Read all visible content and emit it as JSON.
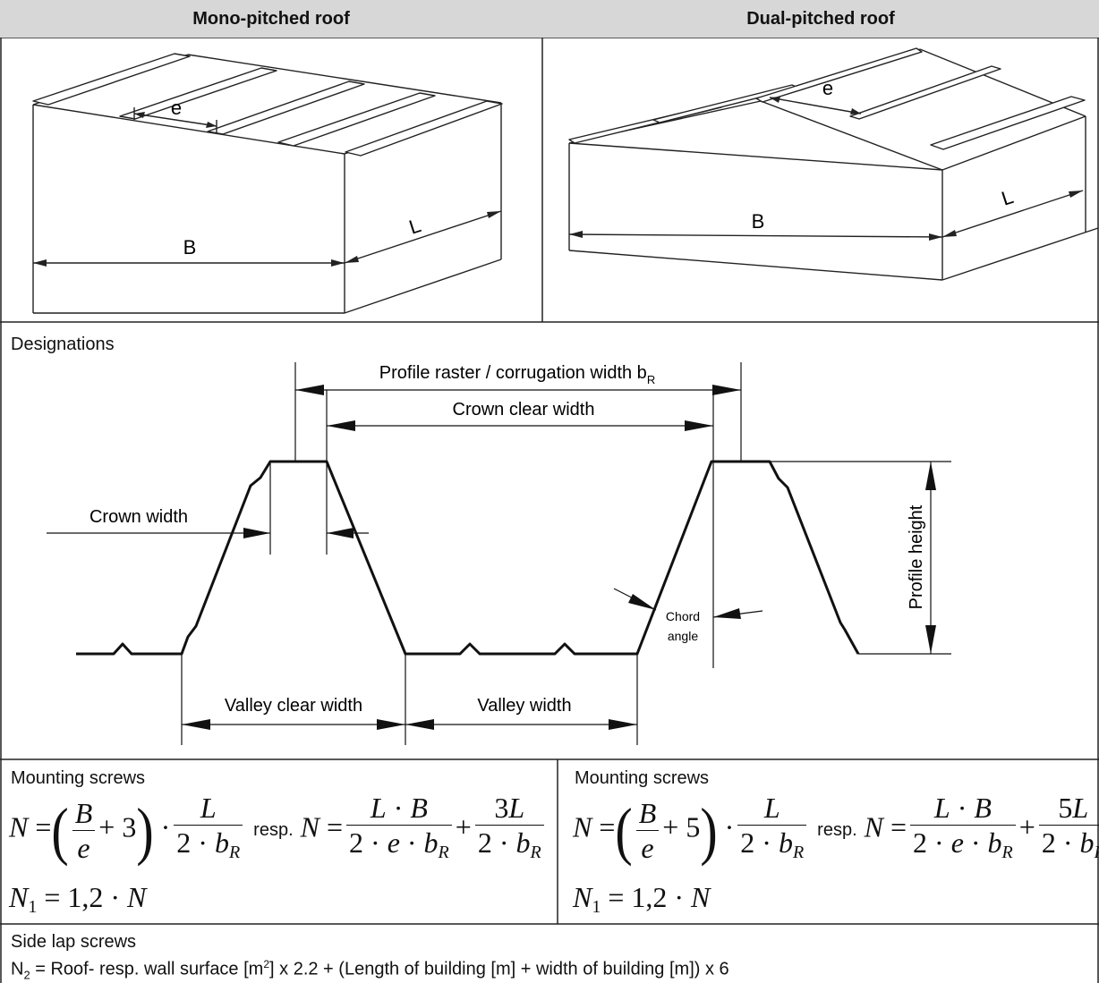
{
  "header": {
    "mono_title": "Mono-pitched roof",
    "dual_title": "Dual-pitched roof"
  },
  "mono_labels": {
    "e": "e",
    "B": "B",
    "L": "L"
  },
  "dual_labels": {
    "e": "e",
    "B": "B",
    "L": "L"
  },
  "designations": {
    "title": "Designations",
    "profile_raster": "Profile raster / corrugation width b",
    "profile_raster_sub": "R",
    "crown_clear_width": "Crown clear width",
    "crown_width": "Crown width",
    "profile_height": "Profile height",
    "chord": "Chord",
    "angle": "angle",
    "valley_clear_width": "Valley clear width",
    "valley_width": "Valley width"
  },
  "mounting": {
    "left_title": "Mounting screws",
    "right_title": "Mounting screws",
    "resp": "resp.",
    "left_const": "3",
    "left_const_L": "3",
    "right_const": "5",
    "right_const_L": "5",
    "n1_text": "1,2"
  },
  "side_lap": {
    "title": "Side lap screws",
    "formula_prefix": "N",
    "formula_sub": "2",
    "formula_main": " = Roof- resp. wall surface [m",
    "formula_sup": "2",
    "formula_rest": "] x 2.2 + (Length of building [m] + width of building [m]) x 6"
  }
}
